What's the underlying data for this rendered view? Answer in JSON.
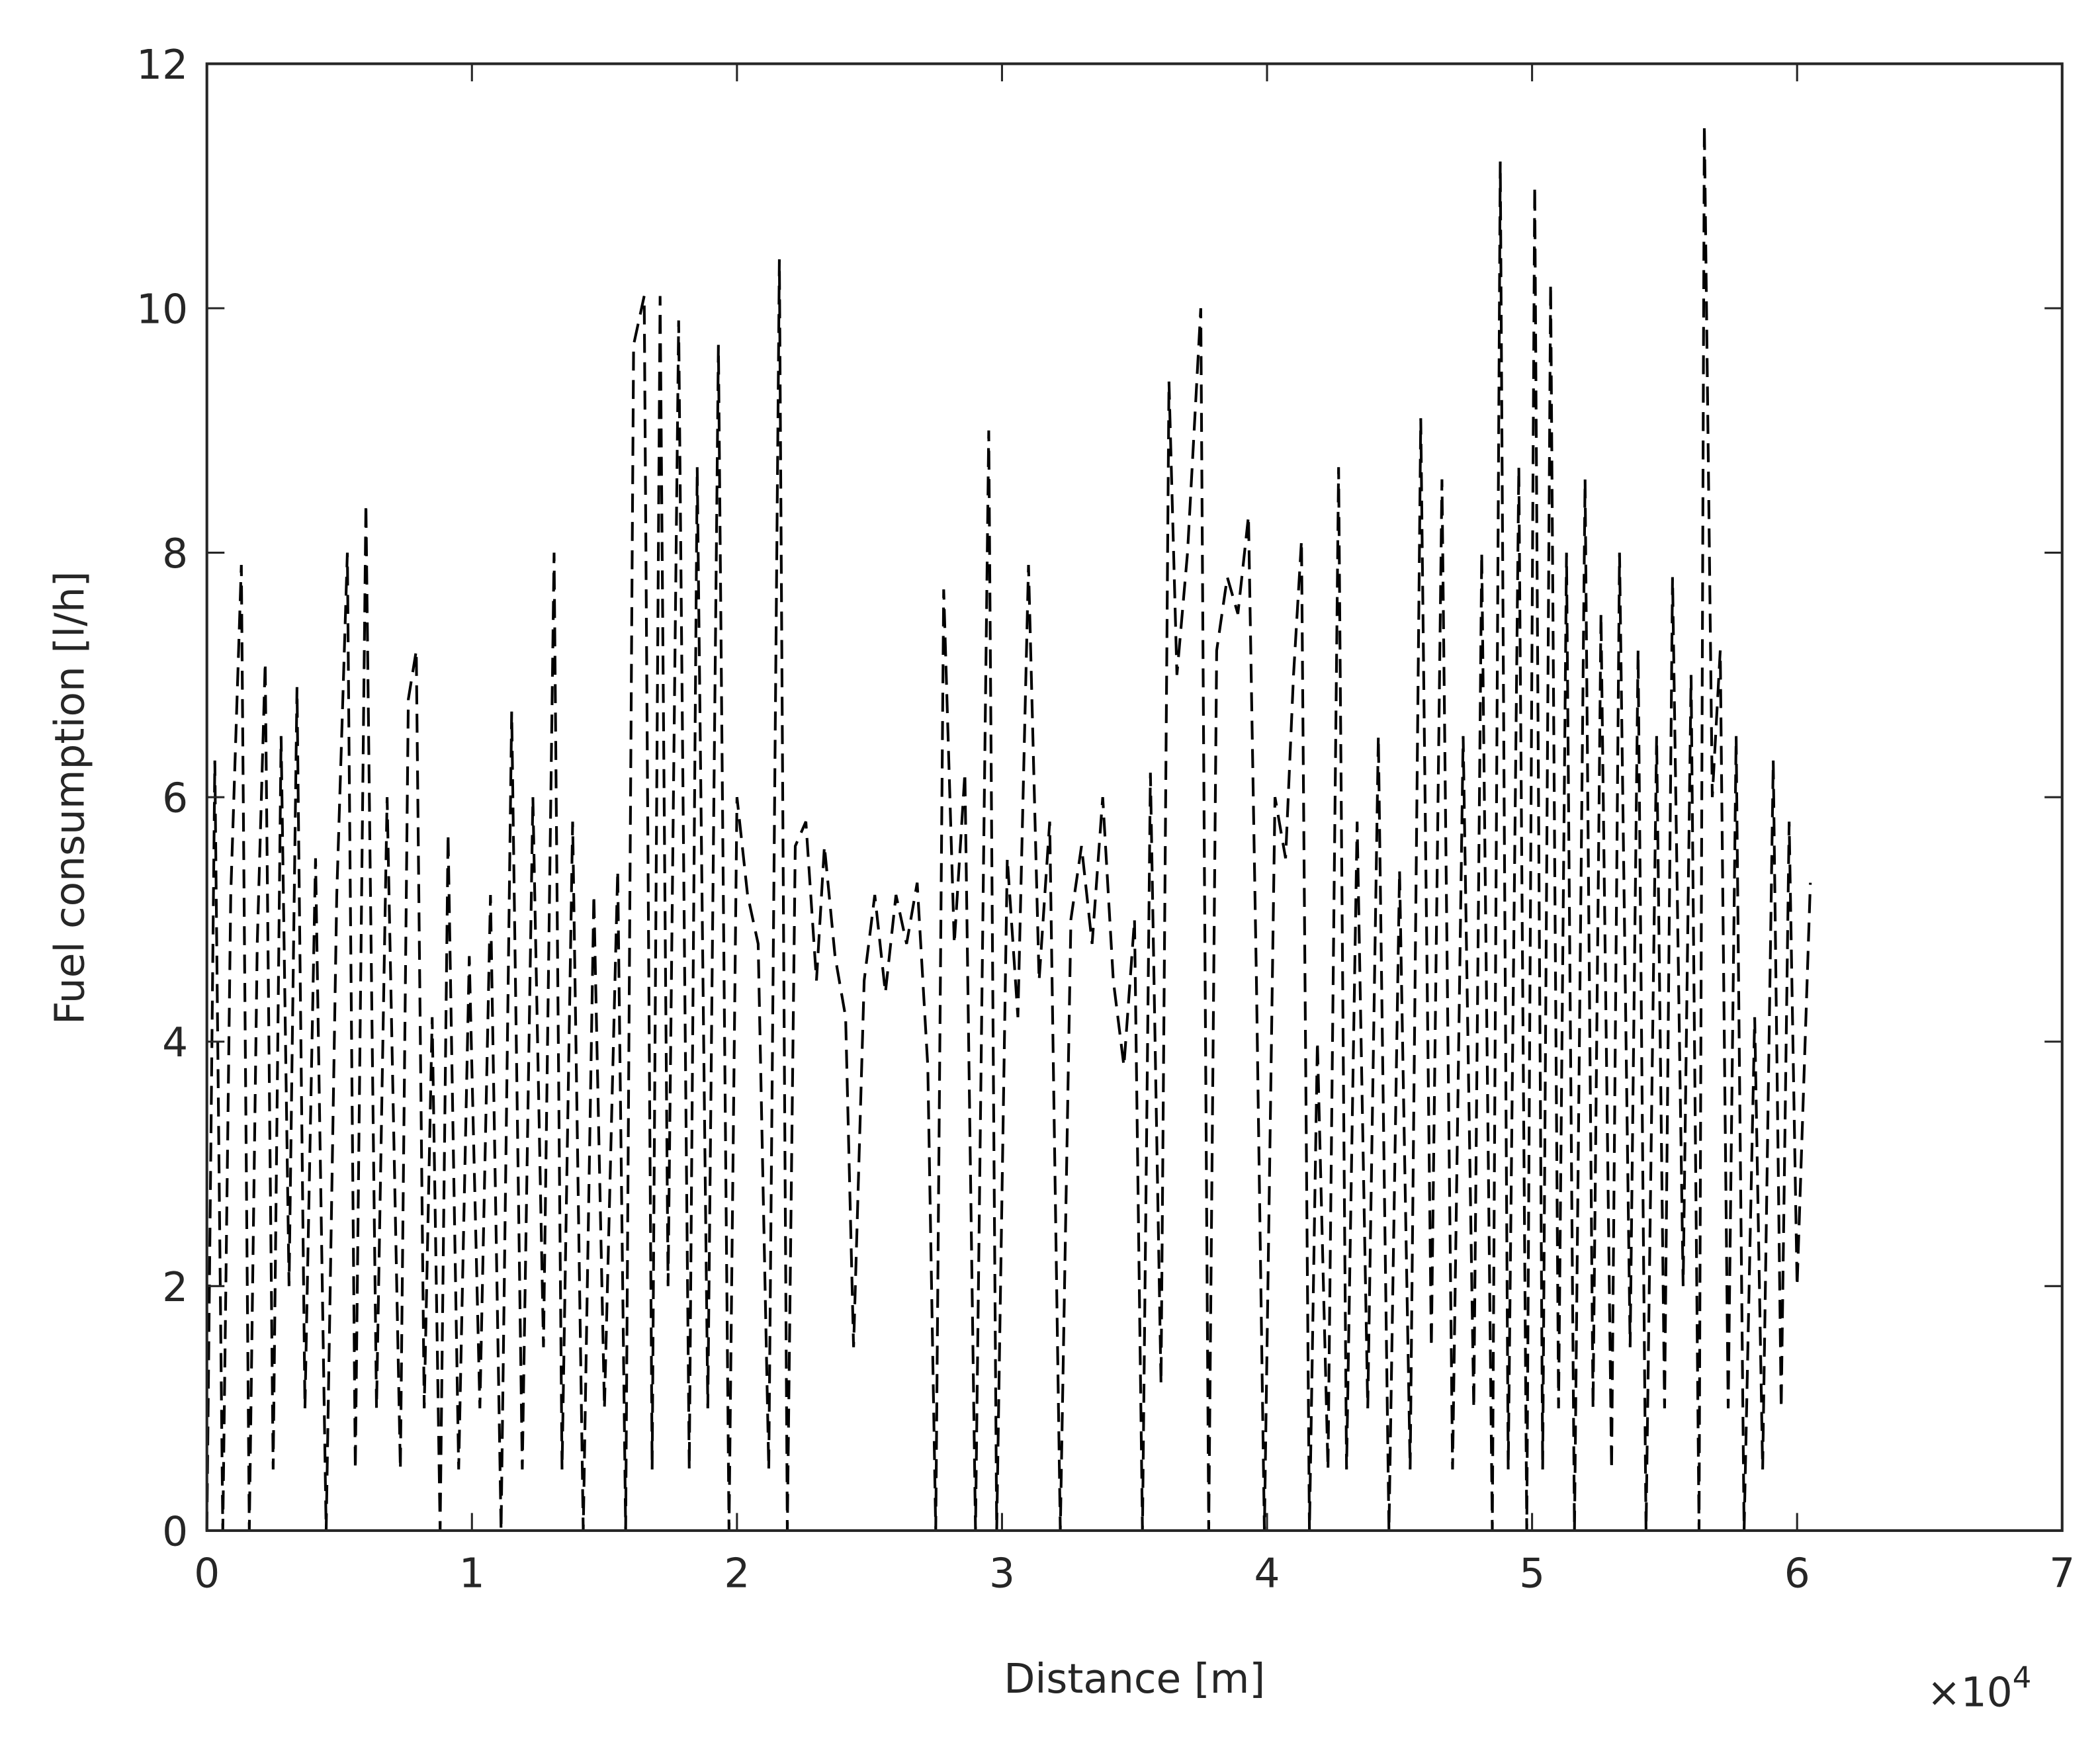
{
  "chart_data": {
    "type": "line",
    "xlabel": "Distance [m]",
    "ylabel": "Fuel consumption [l/h]",
    "x_multiplier": {
      "base": "×10",
      "exponent": "4"
    },
    "xlim": [
      0,
      70000
    ],
    "ylim": [
      0,
      12
    ],
    "xticks": [
      {
        "value": 0,
        "label": "0"
      },
      {
        "value": 10000,
        "label": "1"
      },
      {
        "value": 20000,
        "label": "2"
      },
      {
        "value": 30000,
        "label": "3"
      },
      {
        "value": 40000,
        "label": "4"
      },
      {
        "value": 50000,
        "label": "5"
      },
      {
        "value": 60000,
        "label": "6"
      },
      {
        "value": 70000,
        "label": "7"
      }
    ],
    "yticks": [
      0,
      2,
      4,
      6,
      8,
      10,
      12
    ],
    "grid": false,
    "linestyle": "dashed",
    "series": [
      {
        "color": "#000000",
        "x": [
          0,
          300,
          600,
          900,
          1300,
          1600,
          1900,
          2200,
          2500,
          2800,
          3100,
          3400,
          3700,
          4100,
          4500,
          4900,
          5300,
          5600,
          6000,
          6400,
          6800,
          7300,
          7600,
          7900,
          8200,
          8500,
          8800,
          9100,
          9500,
          9900,
          10300,
          10700,
          11100,
          11500,
          11900,
          12300,
          12700,
          13100,
          13400,
          13800,
          14200,
          14600,
          15000,
          15500,
          15800,
          16100,
          16500,
          16800,
          17100,
          17400,
          17800,
          18200,
          18500,
          18900,
          19300,
          19700,
          20000,
          20400,
          20800,
          21200,
          21600,
          21900,
          22200,
          22600,
          23000,
          23300,
          23700,
          24100,
          24400,
          24800,
          25200,
          25600,
          26000,
          26400,
          26800,
          27200,
          27500,
          27800,
          28200,
          28600,
          29000,
          29500,
          29800,
          30200,
          30600,
          31000,
          31400,
          31800,
          32200,
          32600,
          33000,
          33400,
          33800,
          34200,
          34600,
          35000,
          35300,
          35600,
          36000,
          36300,
          36600,
          37000,
          37500,
          37800,
          38100,
          38500,
          38900,
          39300,
          39600,
          39900,
          40300,
          40700,
          41000,
          41300,
          41600,
          41900,
          42300,
          42700,
          43000,
          43400,
          43800,
          44200,
          44600,
          45000,
          45400,
          45800,
          46200,
          46600,
          47000,
          47400,
          47800,
          48100,
          48500,
          48800,
          49100,
          49500,
          49800,
          50100,
          50400,
          50700,
          51000,
          51300,
          51600,
          52000,
          52300,
          52600,
          53000,
          53300,
          53700,
          54000,
          54300,
          54700,
          55000,
          55300,
          55700,
          56000,
          56300,
          56500,
          56800,
          57100,
          57400,
          57700,
          58000,
          58400,
          58700,
          59100,
          59400,
          59700,
          60000,
          60500
        ],
        "values": [
          0,
          6.3,
          0,
          5.2,
          7.9,
          0,
          4.8,
          7.1,
          0.5,
          6.5,
          2.0,
          6.9,
          1.0,
          5.5,
          0,
          5.2,
          8.0,
          0.5,
          8.4,
          1.0,
          6.0,
          0.5,
          6.8,
          7.2,
          1.0,
          4.2,
          0,
          5.7,
          0.5,
          4.7,
          1.0,
          5.2,
          0,
          6.7,
          0.5,
          6.0,
          1.5,
          8.0,
          0.5,
          5.8,
          0,
          5.2,
          1.0,
          5.4,
          0,
          9.7,
          10.1,
          0.5,
          10.1,
          2.0,
          9.9,
          0.5,
          8.7,
          1.0,
          9.7,
          0,
          6.0,
          5.2,
          4.8,
          0.5,
          10.4,
          0,
          5.6,
          5.8,
          4.5,
          5.6,
          4.7,
          4.2,
          1.5,
          4.5,
          5.2,
          4.4,
          5.2,
          4.8,
          5.3,
          3.8,
          0,
          7.7,
          4.8,
          6.2,
          0,
          9.0,
          0,
          5.5,
          4.2,
          7.9,
          4.5,
          5.8,
          0,
          5.0,
          5.6,
          4.8,
          6.0,
          4.5,
          3.8,
          5.0,
          0,
          6.2,
          1.2,
          9.4,
          7.0,
          8.0,
          10.0,
          0,
          7.2,
          7.8,
          7.5,
          8.3,
          4.5,
          0,
          6.0,
          5.5,
          7.0,
          8.1,
          0,
          4.0,
          0.5,
          8.7,
          0.5,
          5.8,
          1.0,
          6.5,
          0,
          5.4,
          0.5,
          9.1,
          1.5,
          8.6,
          0.5,
          6.5,
          1.0,
          8.0,
          0,
          11.2,
          0.5,
          8.7,
          0,
          11.0,
          0.5,
          10.2,
          1.0,
          8.0,
          0,
          8.6,
          1.0,
          7.5,
          0.5,
          8.0,
          1.5,
          7.2,
          0,
          6.5,
          1.0,
          7.8,
          2.0,
          7.0,
          0,
          11.5,
          6.0,
          7.2,
          1.0,
          6.5,
          0,
          4.2,
          0.5,
          6.3,
          1.0,
          5.8,
          2.0,
          5.3
        ]
      }
    ]
  }
}
